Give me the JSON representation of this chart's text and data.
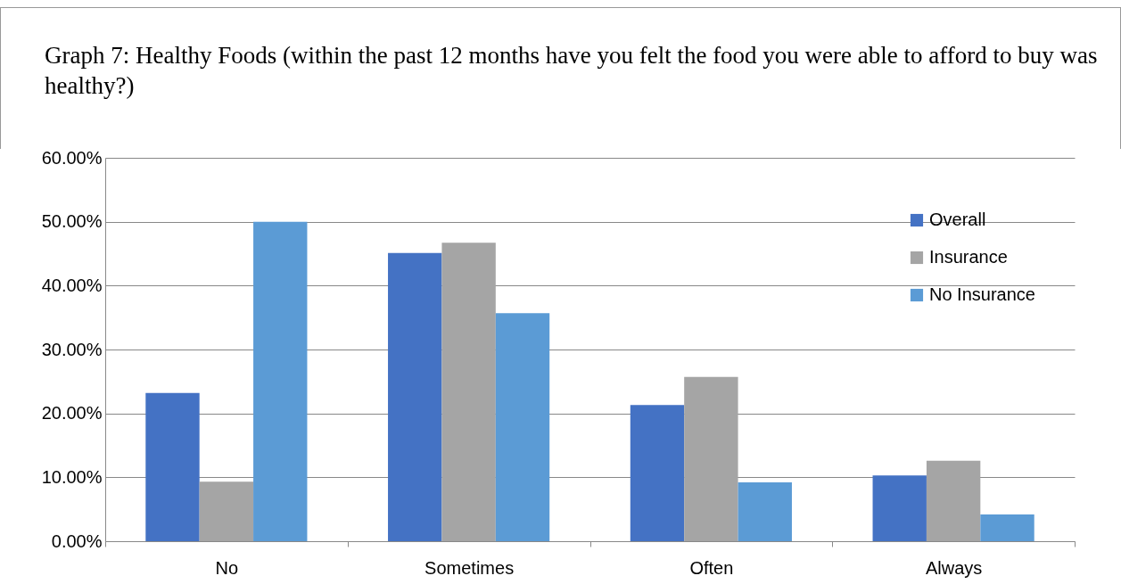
{
  "chart_data": {
    "type": "bar",
    "title": "Graph 7: Healthy Foods (within the past 12 months have you felt the food you were able to afford to buy was healthy?)",
    "categories": [
      "No",
      "Sometimes",
      "Often",
      "Always"
    ],
    "series": [
      {
        "name": "Overall",
        "color": "#4472c4",
        "values": [
          23.2,
          45.1,
          21.3,
          10.3
        ]
      },
      {
        "name": "Insurance",
        "color": "#a5a5a5",
        "values": [
          9.3,
          46.7,
          25.7,
          12.6
        ]
      },
      {
        "name": "No Insurance",
        "color": "#5b9bd5",
        "values": [
          50.0,
          35.7,
          9.2,
          4.2
        ]
      }
    ],
    "ylim": [
      0,
      60
    ],
    "yticks": [
      {
        "value": 0,
        "label": "0.00%"
      },
      {
        "value": 10,
        "label": "10.00%"
      },
      {
        "value": 20,
        "label": "20.00%"
      },
      {
        "value": 30,
        "label": "30.00%"
      },
      {
        "value": 40,
        "label": "40.00%"
      },
      {
        "value": 50,
        "label": "50.00%"
      },
      {
        "value": 60,
        "label": "60.00%"
      }
    ],
    "grid": "y",
    "legend": "right"
  }
}
